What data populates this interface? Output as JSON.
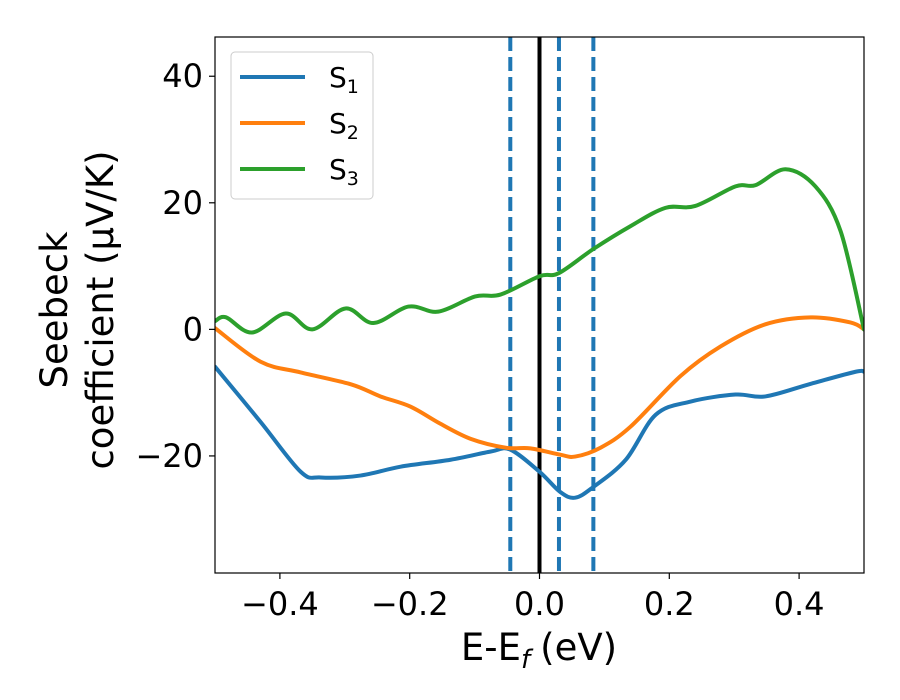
{
  "chart_data": {
    "type": "line",
    "title": "",
    "xlabel": "E-E",
    "xlabel_sub": "f",
    "xlabel_unit": "(eV)",
    "ylabel_line1": "Seebeck",
    "ylabel_line2": "coefficient  (μV/K)",
    "xlim": [
      -0.5,
      0.5
    ],
    "ylim": [
      -38.5,
      46.2
    ],
    "xticks": [
      -0.4,
      -0.2,
      0.0,
      0.2,
      0.4
    ],
    "xtick_labels": [
      "−0.4",
      "−0.2",
      "0.0",
      "0.2",
      "0.4"
    ],
    "yticks": [
      40,
      20,
      0,
      -20
    ],
    "ytick_labels": [
      "40",
      "20",
      "0",
      "−20"
    ],
    "grid": false,
    "legend_position": "upper-left",
    "vlines": [
      {
        "x": 0.0,
        "style": "solid",
        "color": "#000000"
      },
      {
        "x": -0.045,
        "style": "dashed",
        "color": "#1f77b4"
      },
      {
        "x": 0.03,
        "style": "dashed",
        "color": "#1f77b4"
      },
      {
        "x": 0.083,
        "style": "dashed",
        "color": "#1f77b4"
      }
    ],
    "series": [
      {
        "name": "S",
        "sub": "1",
        "color": "#1f77b4",
        "x": [
          -0.5,
          -0.43,
          -0.368,
          -0.337,
          -0.276,
          -0.214,
          -0.137,
          -0.075,
          -0.045,
          0.0,
          0.032,
          0.055,
          0.083,
          0.133,
          0.179,
          0.233,
          0.302,
          0.348,
          0.418,
          0.487,
          0.5
        ],
        "y": [
          -5.9,
          -14.6,
          -22.5,
          -23.4,
          -23.1,
          -21.7,
          -20.6,
          -19.3,
          -19.0,
          -22.5,
          -25.7,
          -26.6,
          -24.9,
          -20.6,
          -13.5,
          -11.4,
          -10.3,
          -10.6,
          -8.6,
          -6.7,
          -6.7
        ]
      },
      {
        "name": "S",
        "sub": "2",
        "color": "#ff7f0e",
        "x": [
          -0.5,
          -0.43,
          -0.368,
          -0.29,
          -0.245,
          -0.199,
          -0.153,
          -0.106,
          -0.052,
          -0.014,
          0.032,
          0.055,
          0.094,
          0.14,
          0.217,
          0.279,
          0.348,
          0.418,
          0.479,
          0.5
        ],
        "y": [
          0.2,
          -5.1,
          -6.8,
          -8.7,
          -10.6,
          -12.2,
          -14.9,
          -17.3,
          -18.7,
          -18.8,
          -19.8,
          -20.1,
          -18.7,
          -15.4,
          -7.4,
          -2.7,
          0.8,
          1.9,
          1.1,
          0.0
        ]
      },
      {
        "name": "S",
        "sub": "3",
        "color": "#2ca02c",
        "x": [
          -0.5,
          -0.483,
          -0.443,
          -0.391,
          -0.35,
          -0.299,
          -0.256,
          -0.202,
          -0.156,
          -0.099,
          -0.06,
          0.0,
          0.03,
          0.083,
          0.14,
          0.194,
          0.24,
          0.302,
          0.333,
          0.379,
          0.425,
          0.464,
          0.5
        ],
        "y": [
          1.3,
          1.9,
          -0.5,
          2.5,
          0.0,
          3.3,
          1.0,
          3.6,
          2.8,
          5.2,
          5.5,
          8.4,
          8.9,
          12.7,
          16.3,
          19.2,
          19.5,
          22.6,
          22.8,
          25.3,
          22.6,
          15.5,
          0.0
        ]
      }
    ]
  }
}
